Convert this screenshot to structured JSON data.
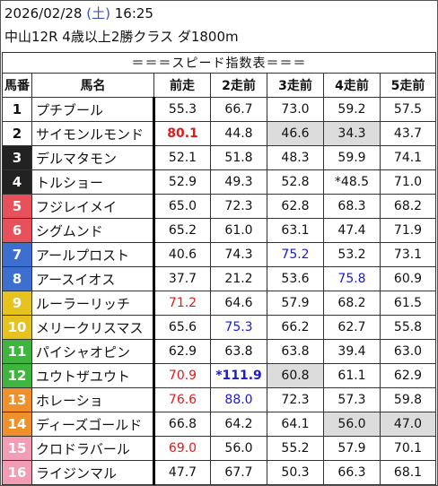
{
  "header": {
    "date": "2026/02/28",
    "dow": "(土)",
    "time": "16:25",
    "race": "中山12R 4歳以上2勝クラス ダ1800m"
  },
  "table": {
    "title": "＝＝＝スピード指数表＝＝＝",
    "columns": [
      "馬番",
      "馬名",
      "前走",
      "2走前",
      "3走前",
      "4走前",
      "5走前"
    ],
    "frame_colors": {
      "1": {
        "bg": "#ffffff",
        "fg": "#111111"
      },
      "2": {
        "bg": "#ffffff",
        "fg": "#111111"
      },
      "3": {
        "bg": "#222222",
        "fg": "#ffffff"
      },
      "4": {
        "bg": "#222222",
        "fg": "#ffffff"
      },
      "5": {
        "bg": "#e8505b",
        "fg": "#ffffff"
      },
      "6": {
        "bg": "#e8505b",
        "fg": "#ffffff"
      },
      "7": {
        "bg": "#3d6fd0",
        "fg": "#ffffff"
      },
      "8": {
        "bg": "#3d6fd0",
        "fg": "#ffffff"
      },
      "9": {
        "bg": "#e6c21e",
        "fg": "#ffffff"
      },
      "10": {
        "bg": "#e6c21e",
        "fg": "#ffffff"
      },
      "11": {
        "bg": "#3fb43f",
        "fg": "#ffffff"
      },
      "12": {
        "bg": "#3fb43f",
        "fg": "#ffffff"
      },
      "13": {
        "bg": "#f0902a",
        "fg": "#ffffff"
      },
      "14": {
        "bg": "#f0902a",
        "fg": "#ffffff"
      },
      "15": {
        "bg": "#f39db5",
        "fg": "#ffffff"
      },
      "16": {
        "bg": "#f39db5",
        "fg": "#ffffff"
      }
    },
    "rows": [
      {
        "num": "1",
        "name": "プチブール",
        "scores": [
          {
            "v": "55.3"
          },
          {
            "v": "66.7"
          },
          {
            "v": "73.0"
          },
          {
            "v": "59.2"
          },
          {
            "v": "57.5"
          }
        ]
      },
      {
        "num": "2",
        "name": "サイモンルモンド",
        "scores": [
          {
            "v": "80.1",
            "c": "red",
            "b": true
          },
          {
            "v": "44.8"
          },
          {
            "v": "46.6",
            "g": true
          },
          {
            "v": "34.3",
            "g": true
          },
          {
            "v": "43.7"
          }
        ]
      },
      {
        "num": "3",
        "name": "デルマタモン",
        "scores": [
          {
            "v": "52.1"
          },
          {
            "v": "51.8"
          },
          {
            "v": "48.3"
          },
          {
            "v": "59.9"
          },
          {
            "v": "74.1"
          }
        ]
      },
      {
        "num": "4",
        "name": "トルショー",
        "scores": [
          {
            "v": "52.9"
          },
          {
            "v": "49.3"
          },
          {
            "v": "52.8"
          },
          {
            "v": "*48.5"
          },
          {
            "v": "71.0"
          }
        ]
      },
      {
        "num": "5",
        "name": "フジレイメイ",
        "scores": [
          {
            "v": "65.0"
          },
          {
            "v": "72.3"
          },
          {
            "v": "62.8"
          },
          {
            "v": "68.3"
          },
          {
            "v": "68.2"
          }
        ]
      },
      {
        "num": "6",
        "name": "シグムンド",
        "scores": [
          {
            "v": "65.2"
          },
          {
            "v": "61.0"
          },
          {
            "v": "63.1"
          },
          {
            "v": "47.4"
          },
          {
            "v": "71.9"
          }
        ]
      },
      {
        "num": "7",
        "name": "アールプロスト",
        "scores": [
          {
            "v": "40.6"
          },
          {
            "v": "74.3"
          },
          {
            "v": "75.2",
            "c": "blue"
          },
          {
            "v": "53.2"
          },
          {
            "v": "73.1"
          }
        ]
      },
      {
        "num": "8",
        "name": "アースイオス",
        "scores": [
          {
            "v": "37.7"
          },
          {
            "v": "21.2"
          },
          {
            "v": "53.6"
          },
          {
            "v": "75.8",
            "c": "blue"
          },
          {
            "v": "60.9"
          }
        ]
      },
      {
        "num": "9",
        "name": "ルーラーリッチ",
        "scores": [
          {
            "v": "71.2",
            "c": "red"
          },
          {
            "v": "64.6"
          },
          {
            "v": "57.9"
          },
          {
            "v": "68.2"
          },
          {
            "v": "61.5"
          }
        ]
      },
      {
        "num": "10",
        "name": "メリークリスマス",
        "scores": [
          {
            "v": "65.6"
          },
          {
            "v": "75.3",
            "c": "blue"
          },
          {
            "v": "66.2"
          },
          {
            "v": "62.7"
          },
          {
            "v": "55.8"
          }
        ]
      },
      {
        "num": "11",
        "name": "パイシャオピン",
        "scores": [
          {
            "v": "62.9"
          },
          {
            "v": "63.8"
          },
          {
            "v": "63.8"
          },
          {
            "v": "39.4"
          },
          {
            "v": "63.0"
          }
        ]
      },
      {
        "num": "12",
        "name": "ユウトザユウト",
        "scores": [
          {
            "v": "70.9",
            "c": "red"
          },
          {
            "v": "*111.9",
            "c": "blue",
            "b": true
          },
          {
            "v": "60.8",
            "g": true
          },
          {
            "v": "61.1"
          },
          {
            "v": "62.9"
          }
        ]
      },
      {
        "num": "13",
        "name": "ホレーショ",
        "scores": [
          {
            "v": "76.6",
            "c": "red"
          },
          {
            "v": "88.0",
            "c": "blue"
          },
          {
            "v": "72.3"
          },
          {
            "v": "57.3"
          },
          {
            "v": "59.8"
          }
        ]
      },
      {
        "num": "14",
        "name": "ディーズゴールド",
        "scores": [
          {
            "v": "66.8"
          },
          {
            "v": "64.2"
          },
          {
            "v": "64.1"
          },
          {
            "v": "56.0",
            "g": true
          },
          {
            "v": "47.0",
            "g": true
          }
        ]
      },
      {
        "num": "15",
        "name": "クロドラバール",
        "scores": [
          {
            "v": "69.0",
            "c": "red"
          },
          {
            "v": "56.0"
          },
          {
            "v": "55.2"
          },
          {
            "v": "57.9"
          },
          {
            "v": "70.1"
          }
        ]
      },
      {
        "num": "16",
        "name": "ライジンマル",
        "scores": [
          {
            "v": "47.7"
          },
          {
            "v": "67.7"
          },
          {
            "v": "50.3"
          },
          {
            "v": "66.3"
          },
          {
            "v": "68.1"
          }
        ]
      }
    ]
  }
}
